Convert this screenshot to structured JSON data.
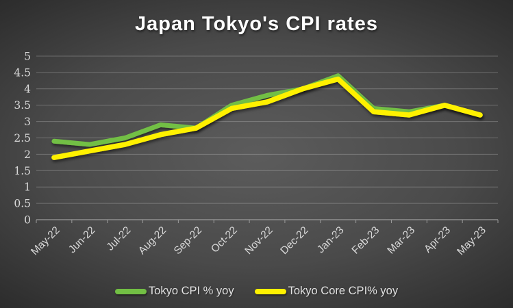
{
  "title": "Japan Tokyo's CPI rates",
  "chart_data": {
    "type": "line",
    "title": "Japan Tokyo's CPI rates",
    "categories": [
      "May-22",
      "Jun-22",
      "Jul-22",
      "Aug-22",
      "Sep-22",
      "Oct-22",
      "Nov-22",
      "Dec-22",
      "Jan-23",
      "Feb-23",
      "Mar-23",
      "Apr-23",
      "May-23"
    ],
    "series": [
      {
        "name": "Tokyo CPI % yoy",
        "color": "#72bf44",
        "values": [
          2.4,
          2.3,
          2.5,
          2.9,
          2.8,
          3.5,
          3.8,
          4.0,
          4.4,
          3.4,
          3.3,
          3.5,
          3.2
        ]
      },
      {
        "name": "Tokyo Core CPI% yoy",
        "color": "#fff100",
        "values": [
          1.9,
          2.1,
          2.3,
          2.6,
          2.8,
          3.4,
          3.6,
          4.0,
          4.3,
          3.3,
          3.2,
          3.5,
          3.2
        ]
      }
    ],
    "ylim": [
      0,
      5
    ],
    "ytick_step": 0.5,
    "ytick_labels": [
      "0",
      "0.5",
      "1",
      "1.5",
      "2",
      "2.5",
      "3",
      "3.5",
      "4",
      "4.5",
      "5"
    ],
    "grid": true,
    "legend_position": "bottom"
  },
  "style": {
    "background_center": "#5c5c5c",
    "background_edge": "#212121",
    "gridline_color": "rgba(255,255,255,0.24)",
    "axis_color": "#9b9b9b",
    "tick_label_color": "#d9d9d9",
    "title_color": "#ffffff"
  }
}
